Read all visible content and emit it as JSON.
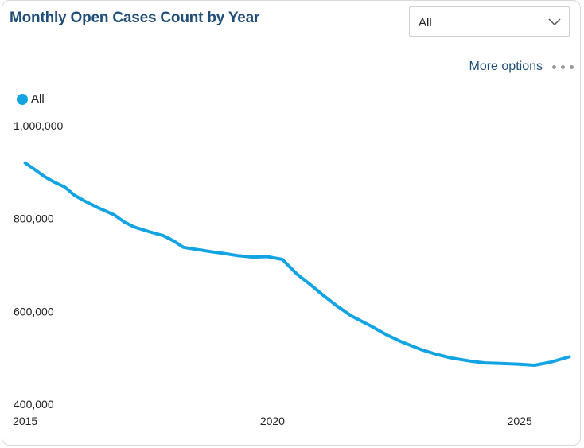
{
  "card": {
    "title": "Monthly Open Cases Count by Year",
    "more_options_label": "More options"
  },
  "filter": {
    "selected": "All",
    "icon": "chevron-down-icon"
  },
  "legend": {
    "items": [
      {
        "name": "All",
        "color": "#12a3e3"
      }
    ]
  },
  "chart_data": {
    "type": "line",
    "title": "Monthly Open Cases Count by Year",
    "xlabel": "",
    "ylabel": "",
    "xlim": [
      2014.62,
      2026.3
    ],
    "ylim": [
      400000,
      1000000
    ],
    "x_ticks": [
      2015,
      2020,
      2025
    ],
    "x_tick_labels": [
      "2015",
      "2020",
      "2025"
    ],
    "y_ticks": [
      400000,
      600000,
      800000,
      1000000
    ],
    "y_tick_labels": [
      "400,000",
      "600,000",
      "800,000",
      "1,000,000"
    ],
    "grid": false,
    "legend_position": "top-left",
    "series": [
      {
        "name": "All",
        "color": "#12a3e3",
        "x": [
          2015.0,
          2015.2,
          2015.4,
          2015.6,
          2015.8,
          2016.0,
          2016.2,
          2016.5,
          2016.8,
          2017.0,
          2017.2,
          2017.5,
          2017.8,
          2018.0,
          2018.2,
          2018.5,
          2018.8,
          2019.0,
          2019.3,
          2019.6,
          2019.9,
          2020.0,
          2020.2,
          2020.5,
          2020.8,
          2021.0,
          2021.3,
          2021.6,
          2022.0,
          2022.3,
          2022.6,
          2023.0,
          2023.3,
          2023.6,
          2024.0,
          2024.3,
          2024.6,
          2025.0,
          2025.3,
          2025.6,
          2026.0
        ],
        "y": [
          920000,
          905000,
          890000,
          878000,
          868000,
          850000,
          838000,
          822000,
          808000,
          793000,
          782000,
          772000,
          763000,
          752000,
          738000,
          733000,
          728000,
          725000,
          720000,
          717000,
          718000,
          716000,
          712000,
          680000,
          655000,
          637000,
          612000,
          590000,
          568000,
          550000,
          535000,
          518000,
          508000,
          500000,
          493000,
          489000,
          488000,
          486000,
          484000,
          490000,
          502000
        ]
      }
    ]
  }
}
